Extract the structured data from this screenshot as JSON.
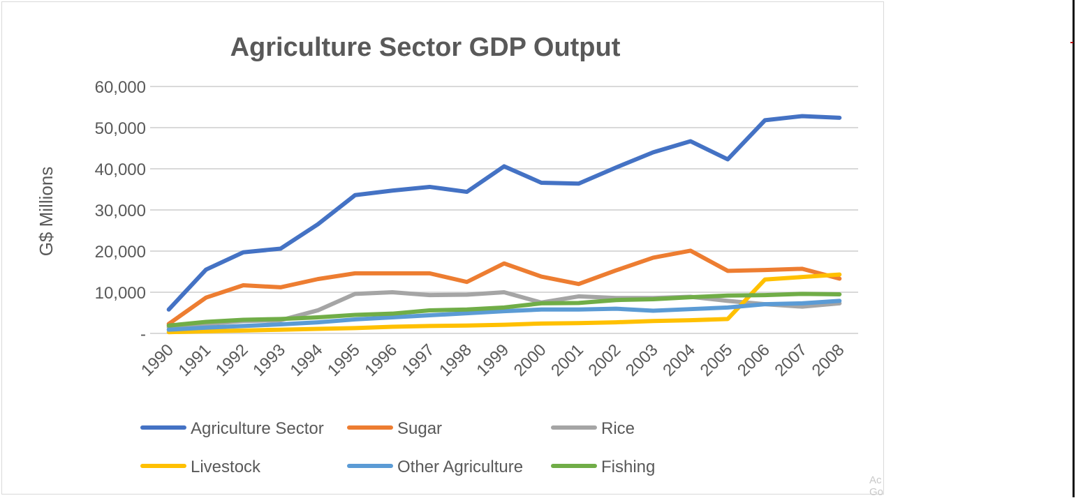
{
  "chart_data": {
    "type": "line",
    "title": "Agriculture Sector GDP Output",
    "xlabel": "",
    "ylabel": "G$ Millions",
    "ylim": [
      0,
      60000
    ],
    "yticks": [
      {
        "value": 0,
        "label": "-"
      },
      {
        "value": 10000,
        "label": "10,000"
      },
      {
        "value": 20000,
        "label": "20,000"
      },
      {
        "value": 30000,
        "label": "30,000"
      },
      {
        "value": 40000,
        "label": "40,000"
      },
      {
        "value": 50000,
        "label": "50,000"
      },
      {
        "value": 60000,
        "label": "60,000"
      }
    ],
    "grid": true,
    "legend": "bottom",
    "categories": [
      "1990",
      "1991",
      "1992",
      "1993",
      "1994",
      "1995",
      "1996",
      "1997",
      "1998",
      "1999",
      "2000",
      "2001",
      "2002",
      "2003",
      "2004",
      "2005",
      "2006",
      "2007",
      "2008"
    ],
    "series": [
      {
        "name": "Agriculture Sector",
        "color": "#4472c4",
        "values": [
          5800,
          15500,
          19700,
          20600,
          26500,
          33600,
          34700,
          35600,
          34400,
          40600,
          36600,
          36400,
          40300,
          44000,
          46700,
          42300,
          51800,
          52800,
          52400
        ]
      },
      {
        "name": "Sugar",
        "color": "#ed7d31",
        "values": [
          2300,
          8700,
          11700,
          11200,
          13200,
          14600,
          14600,
          14600,
          12500,
          17000,
          13800,
          12000,
          15300,
          18400,
          20100,
          15200,
          15400,
          15700,
          13300
        ]
      },
      {
        "name": "Rice",
        "color": "#a5a5a5",
        "values": [
          1500,
          2300,
          3000,
          3200,
          5600,
          9600,
          10000,
          9300,
          9400,
          10000,
          7500,
          9000,
          8600,
          8600,
          8900,
          7900,
          7100,
          6500,
          7300
        ]
      },
      {
        "name": "Livestock",
        "color": "#ffc000",
        "values": [
          300,
          500,
          700,
          900,
          1100,
          1300,
          1600,
          1800,
          1900,
          2100,
          2400,
          2500,
          2700,
          3000,
          3200,
          3500,
          13100,
          13700,
          14300
        ]
      },
      {
        "name": "Other Agriculture",
        "color": "#5b9bd5",
        "values": [
          900,
          1400,
          1800,
          2200,
          2700,
          3400,
          3900,
          4400,
          4900,
          5400,
          5800,
          5800,
          6000,
          5500,
          5900,
          6300,
          7100,
          7300,
          7900
        ]
      },
      {
        "name": "Fishing",
        "color": "#70ad47",
        "values": [
          1900,
          2800,
          3300,
          3500,
          3900,
          4500,
          4800,
          5600,
          5800,
          6300,
          7300,
          7400,
          8100,
          8300,
          8800,
          9200,
          9300,
          9600,
          9500
        ]
      }
    ]
  },
  "watermark": {
    "line1": "Ac",
    "line2": "Go"
  }
}
